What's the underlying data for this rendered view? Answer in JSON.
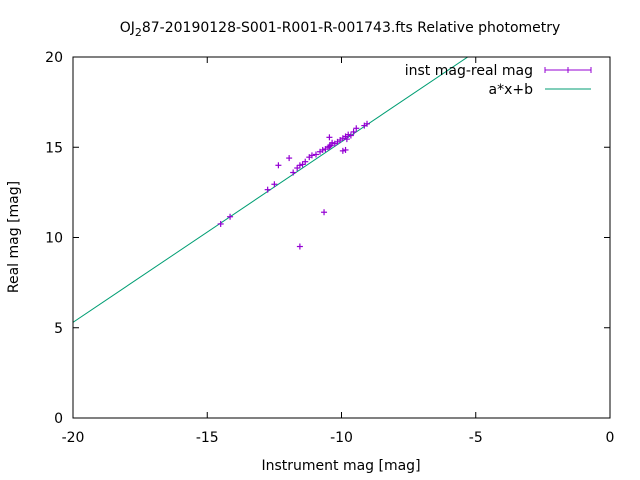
{
  "chart_data": {
    "type": "scatter",
    "title_prefix": "OJ",
    "title_subscript": "2",
    "title_suffix": "87-20190128-S001-R001-R-001743.fts Relative photometry",
    "xlabel": "Instrument mag [mag]",
    "ylabel": "Real mag [mag]",
    "xlim": [
      -20,
      0
    ],
    "ylim": [
      0,
      20
    ],
    "xticks": [
      -20,
      -15,
      -10,
      -5,
      0
    ],
    "yticks": [
      0,
      5,
      10,
      15,
      20
    ],
    "legend_position": "top-right",
    "colors": {
      "points": "#9400d3",
      "fit": "#009e73"
    },
    "series": [
      {
        "name": "inst mag-real mag",
        "kind": "points-errorbars",
        "points": [
          [
            -14.5,
            10.75
          ],
          [
            -14.15,
            11.15
          ],
          [
            -12.75,
            12.65
          ],
          [
            -12.5,
            12.95
          ],
          [
            -12.35,
            14.0
          ],
          [
            -11.95,
            14.4
          ],
          [
            -11.8,
            13.6
          ],
          [
            -11.65,
            13.85
          ],
          [
            -11.55,
            14.0
          ],
          [
            -11.45,
            14.05
          ],
          [
            -11.35,
            14.2
          ],
          [
            -11.2,
            14.45
          ],
          [
            -11.1,
            14.55
          ],
          [
            -10.95,
            14.6
          ],
          [
            -10.8,
            14.75
          ],
          [
            -10.7,
            14.85
          ],
          [
            -10.6,
            14.9
          ],
          [
            -10.5,
            15.0
          ],
          [
            -10.45,
            15.05
          ],
          [
            -10.4,
            15.1
          ],
          [
            -10.35,
            15.25
          ],
          [
            -10.25,
            15.2
          ],
          [
            -10.15,
            15.3
          ],
          [
            -10.05,
            15.4
          ],
          [
            -9.95,
            15.5
          ],
          [
            -9.85,
            15.6
          ],
          [
            -9.8,
            15.45
          ],
          [
            -9.75,
            15.7
          ],
          [
            -9.65,
            15.65
          ],
          [
            -9.55,
            15.85
          ],
          [
            -9.45,
            16.05
          ],
          [
            -9.15,
            16.2
          ],
          [
            -9.05,
            16.3
          ],
          [
            -10.45,
            15.55
          ],
          [
            -9.95,
            14.8
          ],
          [
            -9.85,
            14.85
          ],
          [
            -10.65,
            11.4
          ],
          [
            -11.55,
            9.5
          ]
        ]
      },
      {
        "name": "a*x+b",
        "kind": "line",
        "slope": 1.0,
        "intercept": 25.3
      }
    ]
  }
}
